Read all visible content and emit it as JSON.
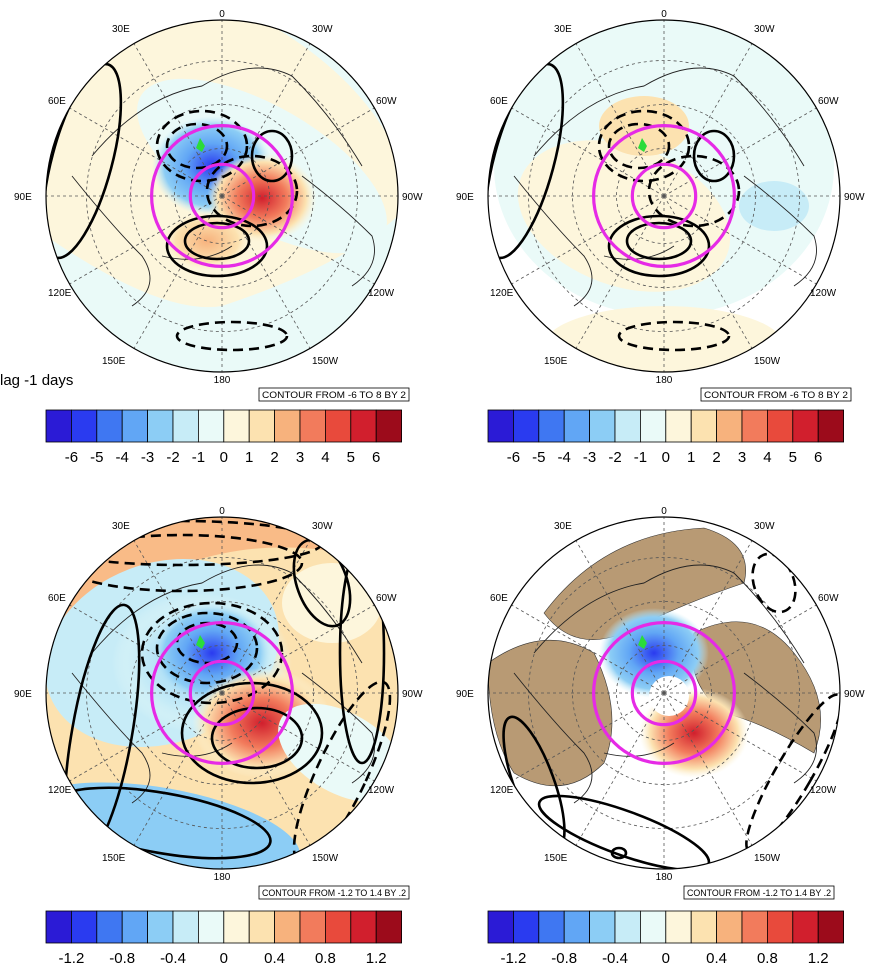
{
  "lag_label": "lag -1 days",
  "colors": {
    "scale": [
      "#2b1bd6",
      "#2a3bf0",
      "#3f77f2",
      "#61a6f5",
      "#8ccdf5",
      "#c7ecf7",
      "#eafaf8",
      "#fdf6dc",
      "#fce2b0",
      "#f7b27d",
      "#f27b5c",
      "#e84a3c",
      "#d11f2d",
      "#9c0b1b"
    ],
    "ring": "#e62ae6",
    "land": "#b89a74",
    "marker": "#2bdc3a"
  },
  "panels": [
    {
      "id": "top-left",
      "lon_labels": {
        "top": "0",
        "bottom": "180",
        "left": "90E",
        "right": "90W",
        "tl1": "30E",
        "tl2": "60E",
        "tr1": "30W",
        "tr2": "60W",
        "bl1": "120E",
        "bl2": "150E",
        "br1": "120W",
        "br2": "150W"
      },
      "contour_info": "CONTOUR FROM -6 TO 8 BY 2",
      "colorbar_labels": [
        "-6",
        "-5",
        "-4",
        "-3",
        "-2",
        "-1",
        "0",
        "1",
        "2",
        "3",
        "4",
        "5",
        "6"
      ]
    },
    {
      "id": "top-right",
      "lon_labels": {
        "top": "0",
        "bottom": "180",
        "left": "90E",
        "right": "90W",
        "tl1": "30E",
        "tl2": "60E",
        "tr1": "30W",
        "tr2": "60W",
        "bl1": "120E",
        "bl2": "150E",
        "br1": "120W",
        "br2": "150W"
      },
      "contour_info": "CONTOUR FROM -6 TO 8 BY 2",
      "colorbar_labels": [
        "-6",
        "-5",
        "-4",
        "-3",
        "-2",
        "-1",
        "0",
        "1",
        "2",
        "3",
        "4",
        "5",
        "6"
      ]
    },
    {
      "id": "bottom-left",
      "lon_labels": {
        "top": "0",
        "bottom": "180",
        "left": "90E",
        "right": "90W",
        "tl1": "30E",
        "tl2": "60E",
        "tr1": "30W",
        "tr2": "60W",
        "bl1": "120E",
        "bl2": "150E",
        "br1": "120W",
        "br2": "150W"
      },
      "contour_info": "CONTOUR FROM -1.2 TO 1.4 BY .2",
      "colorbar_labels": [
        "-1.2",
        "",
        "-0.8",
        "",
        "-0.4",
        "",
        "0",
        "",
        "0.4",
        "",
        "0.8",
        "",
        "1.2"
      ]
    },
    {
      "id": "bottom-right",
      "lon_labels": {
        "top": "0",
        "bottom": "180",
        "left": "90E",
        "right": "90W",
        "tl1": "30E",
        "tl2": "60E",
        "tr1": "30W",
        "tr2": "60W",
        "bl1": "120E",
        "bl2": "150E",
        "br1": "120W",
        "br2": "150W"
      },
      "contour_info": "CONTOUR FROM -1.2 TO 1.4 BY .2",
      "colorbar_labels": [
        "-1.2",
        "",
        "-0.8",
        "",
        "-0.4",
        "",
        "0",
        "",
        "0.4",
        "",
        "0.8",
        "",
        "1.2"
      ]
    }
  ]
}
